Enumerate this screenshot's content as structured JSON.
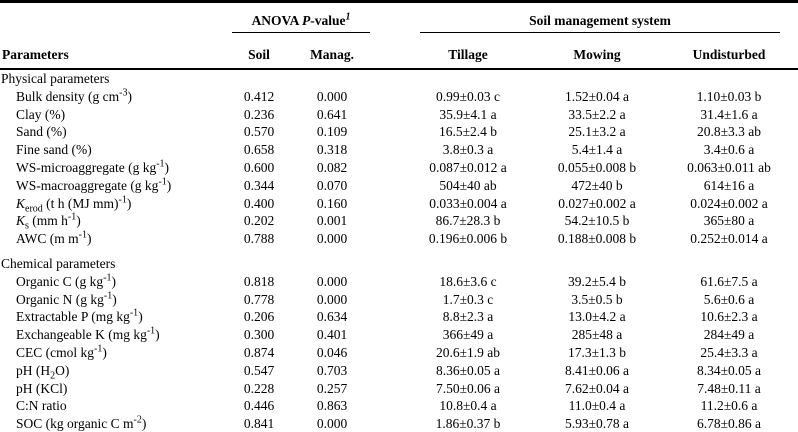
{
  "table": {
    "header": {
      "parameters": "Parameters",
      "anova_group": "ANOVA *P*-value^*1*^",
      "soil_mgmt_group": "Soil management system",
      "soil": "Soil",
      "manag": "Manag.",
      "tillage": "Tillage",
      "mowing": "Mowing",
      "undisturbed": "Undisturbed"
    },
    "rich_text_markers": "*italic* ^superscript^ ~subscript~",
    "sections": [
      {
        "title": "Physical parameters",
        "rows": [
          {
            "label": "Bulk density (g cm^-3^)",
            "soil": "0.412",
            "manag": "0.000",
            "tillage": "0.99±0.03 c",
            "mowing": "1.52±0.04 a",
            "undisturbed": "1.10±0.03 b"
          },
          {
            "label": "Clay (%)",
            "soil": "0.236",
            "manag": "0.641",
            "tillage": "35.9±4.1 a",
            "mowing": "33.5±2.2 a",
            "undisturbed": "31.4±1.6 a"
          },
          {
            "label": "Sand (%)",
            "soil": "0.570",
            "manag": "0.109",
            "tillage": "16.5±2.4 b",
            "mowing": "25.1±3.2 a",
            "undisturbed": "20.8±3.3 ab"
          },
          {
            "label": "Fine sand (%)",
            "soil": "0.658",
            "manag": "0.318",
            "tillage": "3.8±0.3 a",
            "mowing": "5.4±1.4 a",
            "undisturbed": "3.4±0.6 a"
          },
          {
            "label": "WS-microaggregate (g kg^-1^)",
            "soil": "0.600",
            "manag": "0.082",
            "tillage": "0.087±0.012 a",
            "mowing": "0.055±0.008 b",
            "undisturbed": "0.063±0.011 ab"
          },
          {
            "label": "WS-macroaggregate (g kg^-1^)",
            "soil": "0.344",
            "manag": "0.070",
            "tillage": "504±40 ab",
            "mowing": "472±40 b",
            "undisturbed": "614±16 a"
          },
          {
            "label": "*K*~erod~ (t h (MJ mm)^-1^)",
            "soil": "0.400",
            "manag": "0.160",
            "tillage": "0.033±0.004 a",
            "mowing": "0.027±0.002 a",
            "undisturbed": "0.024±0.002 a"
          },
          {
            "label": "*K*~s~ (mm h^-1^)",
            "soil": "0.202",
            "manag": "0.001",
            "tillage": "86.7±28.3 b",
            "mowing": "54.2±10.5 b",
            "undisturbed": "365±80 a"
          },
          {
            "label": "AWC (m m^-1^)",
            "soil": "0.788",
            "manag": "0.000",
            "tillage": "0.196±0.006 b",
            "mowing": "0.188±0.008 b",
            "undisturbed": "0.252±0.014 a"
          }
        ]
      },
      {
        "title": "Chemical parameters",
        "rows": [
          {
            "label": "Organic C (g kg^-1^)",
            "soil": "0.818",
            "manag": "0.000",
            "tillage": "18.6±3.6 c",
            "mowing": "39.2±5.4 b",
            "undisturbed": "61.6±7.5 a"
          },
          {
            "label": "Organic N (g kg^-1^)",
            "soil": "0.778",
            "manag": "0.000",
            "tillage": "1.7±0.3 c",
            "mowing": "3.5±0.5 b",
            "undisturbed": "5.6±0.6 a"
          },
          {
            "label": "Extractable P (mg kg^-1^)",
            "soil": "0.206",
            "manag": "0.634",
            "tillage": "8.8±2.3 a",
            "mowing": "13.0±4.2 a",
            "undisturbed": "10.6±2.3 a"
          },
          {
            "label": "Exchangeable K (mg kg^-1^)",
            "soil": "0.300",
            "manag": "0.401",
            "tillage": "366±49 a",
            "mowing": "285±48 a",
            "undisturbed": "284±49 a"
          },
          {
            "label": "CEC (cmol kg^-1^)",
            "soil": "0.874",
            "manag": "0.046",
            "tillage": "20.6±1.9 ab",
            "mowing": "17.3±1.3 b",
            "undisturbed": "25.4±3.3 a"
          },
          {
            "label": "pH (H~2~O)",
            "soil": "0.547",
            "manag": "0.703",
            "tillage": "8.36±0.05 a",
            "mowing": "8.41±0.06 a",
            "undisturbed": "8.34±0.05 a"
          },
          {
            "label": "pH (KCl)",
            "soil": "0.228",
            "manag": "0.257",
            "tillage": "7.50±0.06 a",
            "mowing": "7.62±0.04 a",
            "undisturbed": "7.48±0.11 a"
          },
          {
            "label": "C:N ratio",
            "soil": "0.446",
            "manag": "0.863",
            "tillage": "10.8±0.4 a",
            "mowing": "11.0±0.4 a",
            "undisturbed": "11.2±0.6 a"
          },
          {
            "label": "SOC (kg organic C m^-2^)",
            "soil": "0.841",
            "manag": "0.000",
            "tillage": "1.86±0.37 b",
            "mowing": "5.93±0.78 a",
            "undisturbed": "6.78±0.86 a"
          }
        ]
      }
    ]
  }
}
